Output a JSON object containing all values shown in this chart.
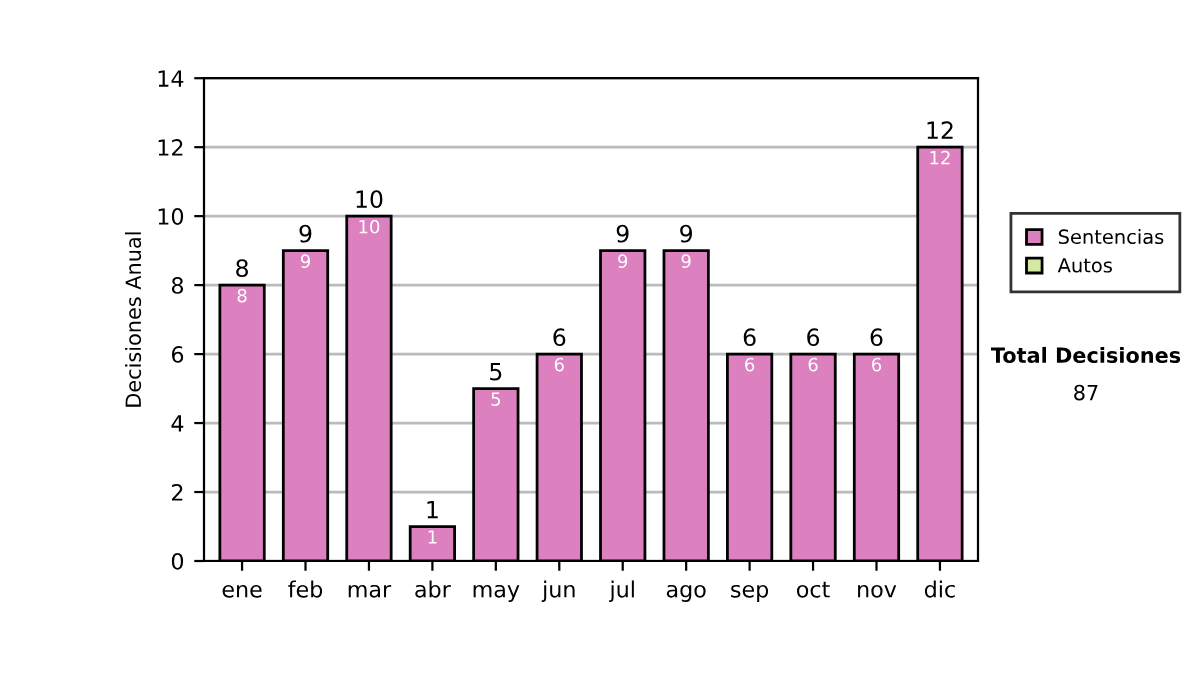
{
  "chart_data": {
    "type": "bar",
    "ylabel": "Decisiones Anual",
    "categories": [
      "ene",
      "feb",
      "mar",
      "abr",
      "may",
      "jun",
      "jul",
      "ago",
      "sep",
      "oct",
      "nov",
      "dic"
    ],
    "series": [
      {
        "name": "Sentencias",
        "color": "#dd80c0",
        "values": [
          8,
          9,
          10,
          1,
          5,
          6,
          9,
          9,
          6,
          6,
          6,
          12
        ]
      },
      {
        "name": "Autos",
        "color": "#d4eaa0",
        "values": [
          null,
          null,
          null,
          null,
          null,
          null,
          null,
          null,
          null,
          null,
          null,
          null
        ]
      }
    ],
    "totals": [
      "8",
      "9",
      "10",
      "1",
      "5",
      "6",
      "9",
      "9",
      "6",
      "6",
      "6",
      "12"
    ],
    "data_labels": true,
    "ylim": [
      0,
      14
    ],
    "yticks": [
      0,
      2,
      4,
      6,
      8,
      10,
      12,
      14
    ],
    "grid": "y",
    "legend": "right",
    "annotations": [
      "Total Decisiones",
      "87"
    ]
  }
}
